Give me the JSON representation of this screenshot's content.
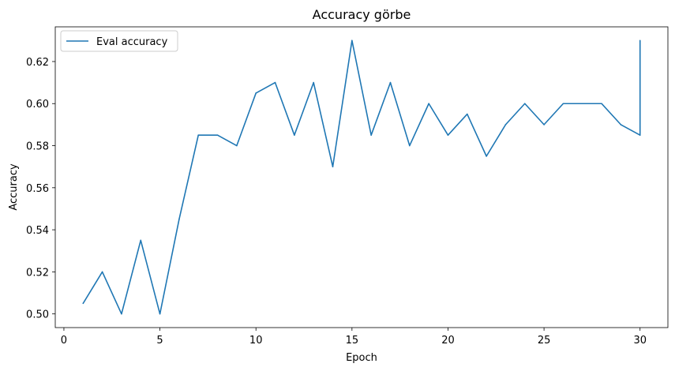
{
  "chart_data": {
    "type": "line",
    "title": "Accuracy görbe",
    "xlabel": "Epoch",
    "ylabel": "Accuracy",
    "xlim": [
      -0.45,
      31.45
    ],
    "ylim": [
      0.4935,
      0.6365
    ],
    "xticks": [
      0,
      5,
      10,
      15,
      20,
      25,
      30
    ],
    "yticks": [
      0.5,
      0.52,
      0.54,
      0.56,
      0.58,
      0.6,
      0.62
    ],
    "ytick_labels": [
      "0.50",
      "0.52",
      "0.54",
      "0.56",
      "0.58",
      "0.60",
      "0.62"
    ],
    "grid": false,
    "legend_position": "upper left",
    "series": [
      {
        "name": "Eval accuracy",
        "color": "#1f77b4",
        "x": [
          1,
          2,
          3,
          4,
          5,
          6,
          7,
          8,
          9,
          10,
          11,
          12,
          13,
          14,
          15,
          16,
          17,
          18,
          19,
          20,
          21,
          22,
          23,
          24,
          25,
          26,
          27,
          28,
          29,
          30,
          30
        ],
        "y": [
          0.505,
          0.52,
          0.5,
          0.535,
          0.5,
          0.545,
          0.585,
          0.585,
          0.58,
          0.605,
          0.61,
          0.585,
          0.61,
          0.57,
          0.63,
          0.585,
          0.61,
          0.58,
          0.6,
          0.585,
          0.595,
          0.575,
          0.59,
          0.6,
          0.59,
          0.6,
          0.6,
          0.6,
          0.59,
          0.585,
          0.63
        ]
      }
    ]
  }
}
